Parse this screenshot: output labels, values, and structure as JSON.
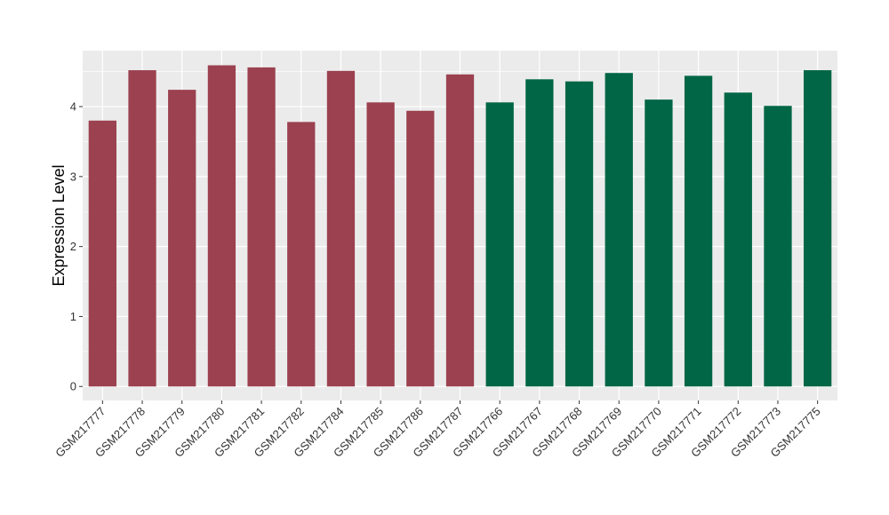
{
  "chart_data": {
    "type": "bar",
    "title": "",
    "xlabel": "",
    "ylabel": "Expression Level",
    "ylim": [
      -0.2,
      4.8
    ],
    "yticks": [
      0,
      1,
      2,
      3,
      4
    ],
    "grid": true,
    "legend": "none",
    "categories": [
      "GSM217777",
      "GSM217778",
      "GSM217779",
      "GSM217780",
      "GSM217781",
      "GSM217782",
      "GSM217784",
      "GSM217785",
      "GSM217786",
      "GSM217787",
      "GSM217766",
      "GSM217767",
      "GSM217768",
      "GSM217769",
      "GSM217770",
      "GSM217771",
      "GSM217772",
      "GSM217773",
      "GSM217775"
    ],
    "values": [
      3.8,
      4.52,
      4.24,
      4.59,
      4.56,
      3.78,
      4.51,
      4.06,
      3.94,
      4.46,
      4.06,
      4.39,
      4.36,
      4.48,
      4.1,
      4.44,
      4.2,
      4.01,
      4.52
    ],
    "bar_colors": [
      "#9b414f",
      "#9b414f",
      "#9b414f",
      "#9b414f",
      "#9b414f",
      "#9b414f",
      "#9b414f",
      "#9b414f",
      "#9b414f",
      "#9b414f",
      "#006645",
      "#006645",
      "#006645",
      "#006645",
      "#006645",
      "#006645",
      "#006645",
      "#006645",
      "#006645"
    ],
    "panel_background": "#ebebeb",
    "grid_color": "#ffffff"
  }
}
